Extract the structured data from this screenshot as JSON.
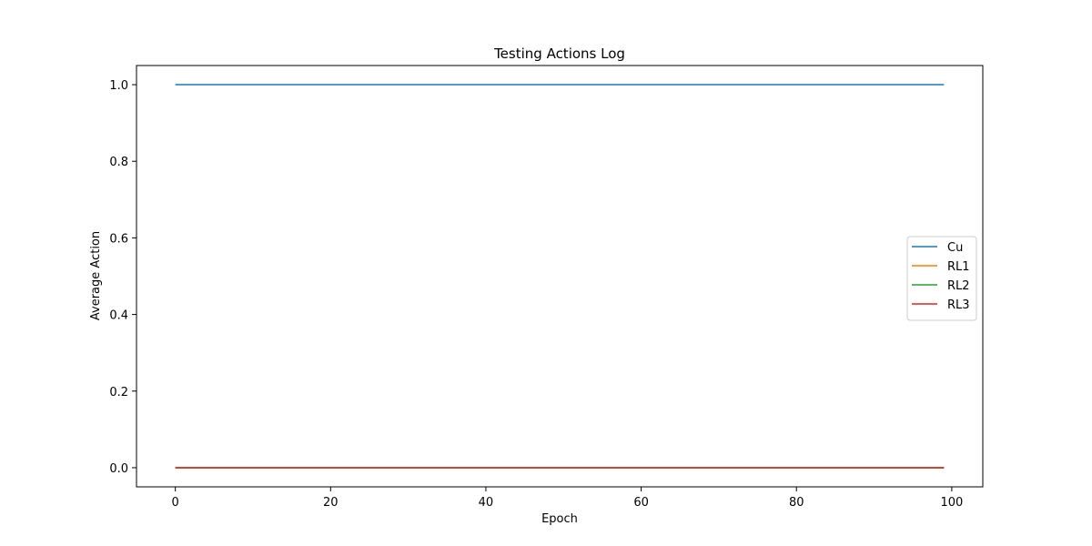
{
  "chart_data": {
    "type": "line",
    "title": "Testing Actions Log",
    "xlabel": "Epoch",
    "ylabel": "Average Action",
    "xlim": [
      -5,
      104
    ],
    "ylim": [
      -0.05,
      1.05
    ],
    "x_ticks": [
      0,
      20,
      40,
      60,
      80,
      100
    ],
    "y_ticks": [
      0.0,
      0.2,
      0.4,
      0.6,
      0.8,
      1.0
    ],
    "x_range": [
      0,
      99
    ],
    "grid": false,
    "legend_position": "center-right",
    "series": [
      {
        "name": "Cu",
        "color": "#1f77b4",
        "x": [
          0,
          99
        ],
        "y": [
          1.0,
          1.0
        ]
      },
      {
        "name": "RL1",
        "color": "#ff7f0e",
        "x": [
          0,
          99
        ],
        "y": [
          0.0,
          0.0
        ]
      },
      {
        "name": "RL2",
        "color": "#2ca02c",
        "x": [
          0,
          99
        ],
        "y": [
          0.0,
          0.0
        ]
      },
      {
        "name": "RL3",
        "color": "#d62728",
        "x": [
          0,
          99
        ],
        "y": [
          0.0,
          0.0
        ]
      }
    ]
  }
}
